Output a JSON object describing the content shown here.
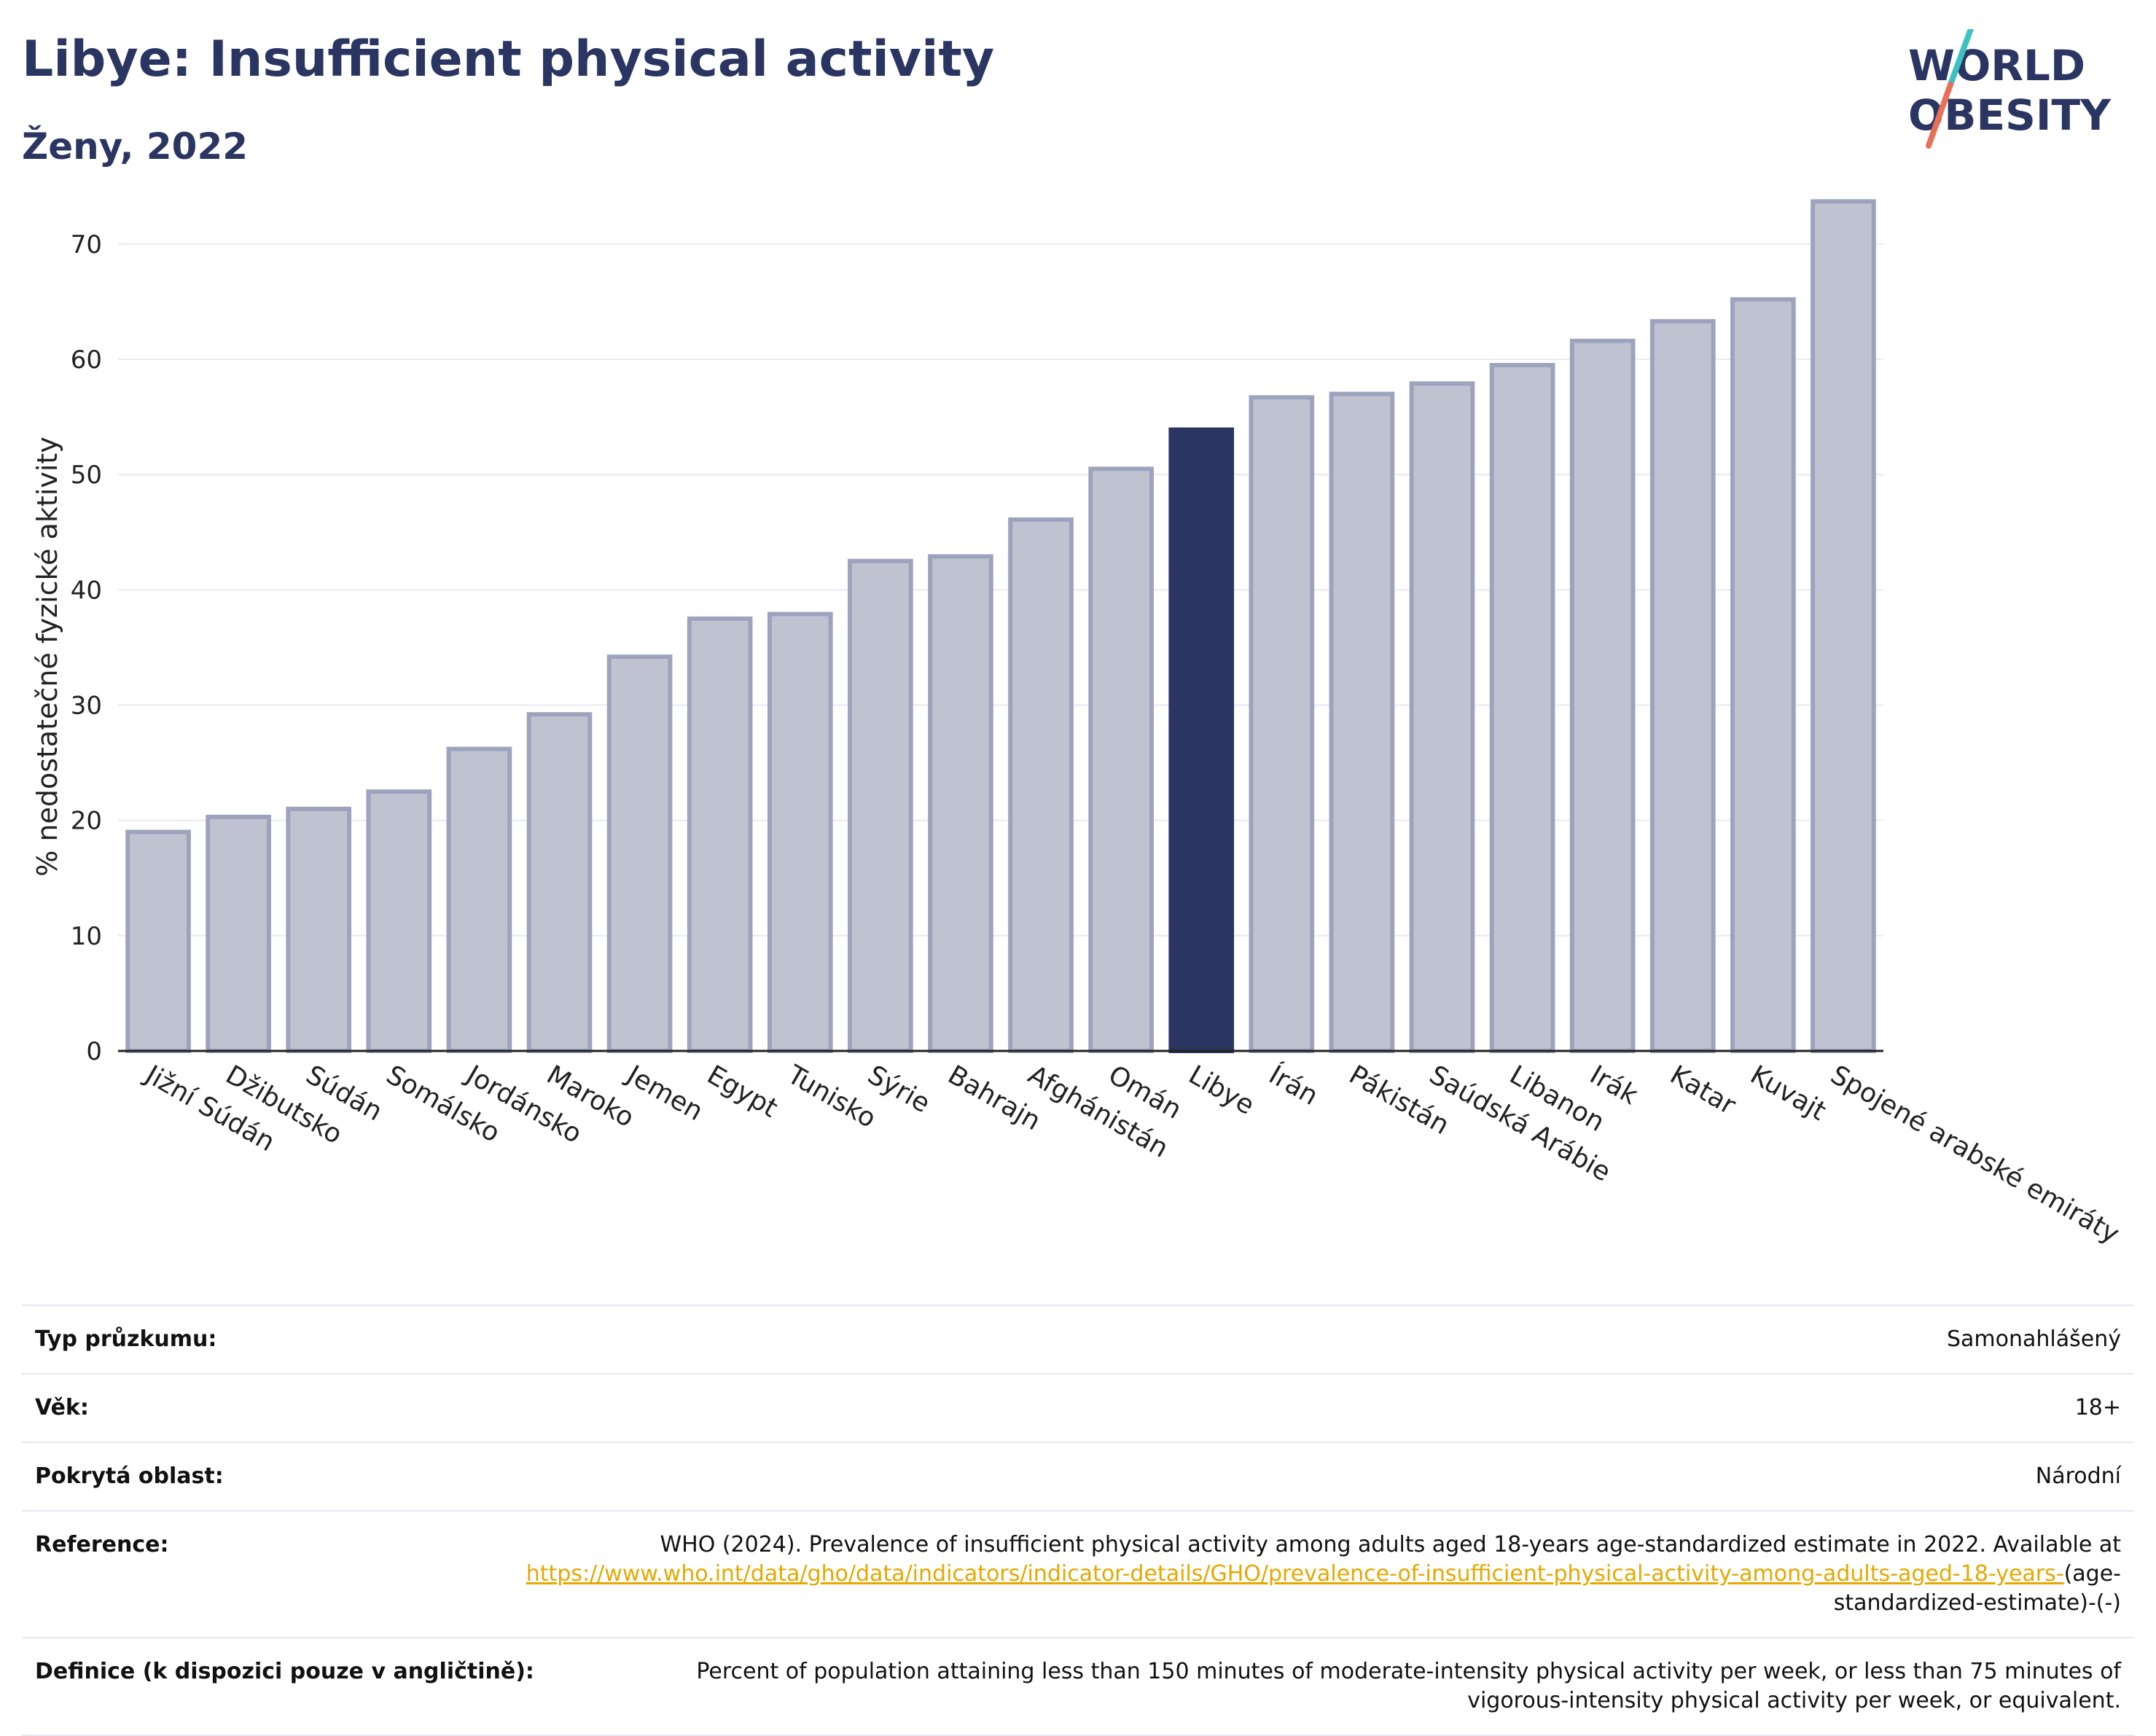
{
  "header": {
    "title": "Libye: Insufficient physical activity",
    "subtitle": "Ženy, 2022"
  },
  "logo": {
    "line1": "WORLD",
    "line2": "OBESITY",
    "text_color": "#2b3562",
    "slash_top_color": "#3ec1c1",
    "slash_bottom_color": "#e8705a"
  },
  "colors": {
    "bar_fill": "#bfc3d1",
    "bar_stroke": "#9ea3bd",
    "highlight_fill": "#2b3562",
    "grid": "#e8eaf1",
    "axis": "#222222"
  },
  "chart_data": {
    "type": "bar",
    "title": "Libye: Insufficient physical activity",
    "subtitle": "Ženy, 2022",
    "xlabel": "",
    "ylabel": "% nedostatečné fyzické aktivity",
    "ylim": [
      0,
      76
    ],
    "yticks": [
      0,
      10,
      20,
      30,
      40,
      50,
      60,
      70
    ],
    "grid": true,
    "highlight": "Libye",
    "categories": [
      "Jižní Súdán",
      "Džibutsko",
      "Súdán",
      "Somálsko",
      "Jordánsko",
      "Maroko",
      "Jemen",
      "Egypt",
      "Tunisko",
      "Sýrie",
      "Bahrajn",
      "Afghánistán",
      "Omán",
      "Libye",
      "Írán",
      "Pákistán",
      "Saúdská Arábie",
      "Libanon",
      "Irák",
      "Katar",
      "Kuvajt",
      "Spojené arabské emiráty"
    ],
    "values": [
      19.0,
      20.3,
      21.0,
      22.5,
      26.2,
      29.2,
      34.2,
      37.5,
      37.9,
      42.5,
      42.9,
      46.1,
      50.5,
      53.9,
      56.7,
      57.0,
      57.9,
      59.5,
      61.6,
      63.3,
      65.2,
      73.7
    ]
  },
  "details": {
    "survey_type": {
      "label": "Typ průzkumu:",
      "value": "Samonahlášený"
    },
    "age": {
      "label": "Věk:",
      "value": "18+"
    },
    "coverage": {
      "label": "Pokrytá oblast:",
      "value": "Národní"
    },
    "reference": {
      "label": "Reference:",
      "text": "WHO (2024). Prevalence of insufficient physical activity among adults aged 18-years age-standardized estimate in 2022. Available at",
      "link": "https://www.who.int/data/gho/data/indicators/indicator-details/GHO/prevalence-of-insufficient-physical-activity-among-adults-aged-18-years-",
      "suffix": "(age-standardized-estimate)-(-)"
    },
    "definition": {
      "label": "Definice (k dispozici pouze v angličtině):",
      "value": "Percent of population attaining less than 150 minutes of moderate-intensity physical activity per week, or less than 75 minutes of vigorous-intensity physical activity per week, or equivalent."
    }
  }
}
